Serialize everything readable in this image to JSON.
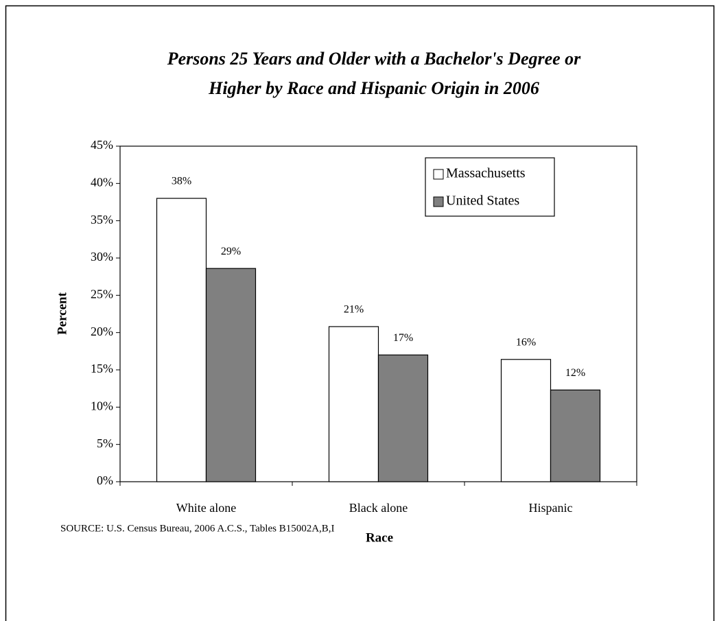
{
  "chart_data": {
    "type": "bar",
    "title": [
      "Persons 25 Years and Older with a Bachelor's Degree or",
      "Higher by Race and Hispanic Origin in 2006"
    ],
    "x_label": "Race",
    "y_label": "Percent",
    "categories": [
      "White alone",
      "Black alone",
      "Hispanic"
    ],
    "series": [
      {
        "name": "Massachusetts",
        "color": "#ffffff",
        "values": [
          38,
          20.8,
          16.4
        ],
        "value_labels": [
          "38%",
          "21%",
          "16%"
        ]
      },
      {
        "name": "United States",
        "color": "#808080",
        "values": [
          28.6,
          17,
          12.3
        ],
        "value_labels": [
          "29%",
          "17%",
          "12%"
        ]
      }
    ],
    "ylim": [
      0,
      45
    ],
    "yticks": [
      {
        "value": 0,
        "label": "0%"
      },
      {
        "value": 5,
        "label": "5%"
      },
      {
        "value": 10,
        "label": "10%"
      },
      {
        "value": 15,
        "label": "15%"
      },
      {
        "value": 20,
        "label": "20%"
      },
      {
        "value": 25,
        "label": "25%"
      },
      {
        "value": 30,
        "label": "30%"
      },
      {
        "value": 35,
        "label": "35%"
      },
      {
        "value": 40,
        "label": "40%"
      },
      {
        "value": 45,
        "label": "45%"
      }
    ],
    "grid": false,
    "legend_position": "top-right",
    "source": "SOURCE: U.S. Census Bureau, 2006 A.C.S., Tables B15002A,B,I"
  }
}
